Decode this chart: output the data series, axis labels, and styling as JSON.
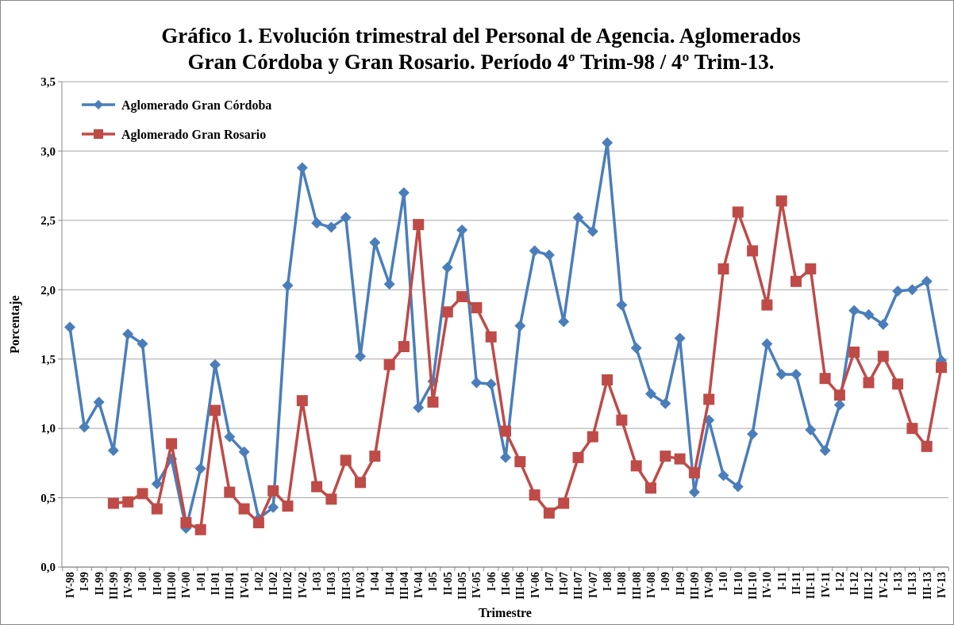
{
  "chart_data": {
    "type": "line",
    "title": "Gráfico 1. Evolución trimestral del Personal de Agencia. Aglomerados\nGran Córdoba y Gran Rosario. Período 4º Trim-98 / 4º Trim-13.",
    "xlabel": "Trimestre",
    "ylabel": "Porcentaje",
    "categories": [
      "IV-98",
      "I-99",
      "II-99",
      "III-99",
      "IV-99",
      "I-00",
      "II-00",
      "III-00",
      "IV-00",
      "I-01",
      "II-01",
      "III-01",
      "IV-01",
      "I-02",
      "II-02",
      "III-02",
      "IV-02",
      "I-03",
      "II-03",
      "III-03",
      "IV-03",
      "I-04",
      "II-04",
      "III-04",
      "IV-04",
      "I-05",
      "II-05",
      "III-05",
      "IV-05",
      "I-06",
      "II-06",
      "III-06",
      "IV-06",
      "I-07",
      "II-07",
      "III-07",
      "IV-07",
      "I-08",
      "II-08",
      "III-08",
      "IV-08",
      "I-09",
      "II-09",
      "III-09",
      "IV-09",
      "I-10",
      "II-10",
      "III-10",
      "IV-10",
      "I-11",
      "II-11",
      "III-11",
      "IV-11",
      "I-12",
      "II-12",
      "III-12",
      "IV-12",
      "I-13",
      "II-13",
      "III-13",
      "IV-13"
    ],
    "series": [
      {
        "name": "Aglomerado Gran Córdoba",
        "color": "#4a7ebb",
        "marker": "diamond",
        "values": [
          1.73,
          1.01,
          1.19,
          0.84,
          1.68,
          1.61,
          0.6,
          0.78,
          0.28,
          0.71,
          1.46,
          0.94,
          0.83,
          0.35,
          0.43,
          2.03,
          2.88,
          2.48,
          2.45,
          2.52,
          1.52,
          2.34,
          2.04,
          2.7,
          1.15,
          1.34,
          2.16,
          2.43,
          1.33,
          1.32,
          0.79,
          1.74,
          2.28,
          2.25,
          1.77,
          2.52,
          2.42,
          3.06,
          1.89,
          1.58,
          1.25,
          1.18,
          1.65,
          0.54,
          1.06,
          0.66,
          0.58,
          0.96,
          1.61,
          1.39,
          1.39,
          0.99,
          0.84,
          1.17,
          1.85,
          1.82,
          1.75,
          1.99,
          2.0,
          2.06,
          1.49
        ]
      },
      {
        "name": "Aglomerado Gran Rosario",
        "color": "#be4b48",
        "marker": "square",
        "values": [
          null,
          null,
          null,
          0.46,
          0.47,
          0.53,
          0.42,
          0.89,
          0.32,
          0.27,
          1.13,
          0.54,
          0.42,
          0.32,
          0.55,
          0.44,
          1.2,
          0.58,
          0.49,
          0.77,
          0.61,
          0.8,
          1.46,
          1.59,
          2.47,
          1.19,
          1.84,
          1.95,
          1.87,
          1.66,
          0.98,
          0.76,
          0.52,
          0.39,
          0.46,
          0.79,
          0.94,
          1.35,
          1.06,
          0.73,
          0.57,
          0.8,
          0.78,
          0.68,
          1.21,
          2.15,
          2.56,
          2.28,
          1.89,
          2.64,
          2.06,
          2.15,
          1.36,
          1.24,
          1.55,
          1.33,
          1.52,
          1.32,
          1.0,
          0.87,
          1.44
        ]
      }
    ],
    "ylim": [
      0,
      3.5
    ],
    "yticks": [
      {
        "value": 0,
        "label": "0,0"
      },
      {
        "value": 0.5,
        "label": "0,5"
      },
      {
        "value": 1,
        "label": "1,0"
      },
      {
        "value": 1.5,
        "label": "1,5"
      },
      {
        "value": 2,
        "label": "2,0"
      },
      {
        "value": 2.5,
        "label": "2,5"
      },
      {
        "value": 3,
        "label": "3,0"
      },
      {
        "value": 3.5,
        "label": "3,5"
      }
    ],
    "grid": "y",
    "legend": "top left",
    "line_style": "solid"
  }
}
